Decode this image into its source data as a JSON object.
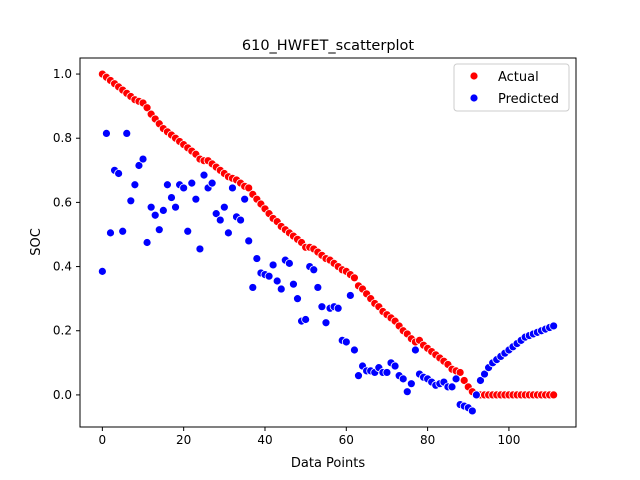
{
  "chart_data": {
    "type": "scatter",
    "title": "610_HWFET_scatterplot",
    "xlabel": "Data Points",
    "ylabel": "SOC",
    "xlim": [
      -5.5,
      116.5
    ],
    "ylim": [
      -0.1,
      1.05
    ],
    "xticks": [
      0,
      20,
      40,
      60,
      80,
      100
    ],
    "yticks": [
      0.0,
      0.2,
      0.4,
      0.6,
      0.8,
      1.0
    ],
    "xtick_labels": [
      "0",
      "20",
      "40",
      "60",
      "80",
      "100"
    ],
    "ytick_labels": [
      "0.0",
      "0.2",
      "0.4",
      "0.6",
      "0.8",
      "1.0"
    ],
    "grid": false,
    "legend_position": "top-right",
    "series": [
      {
        "name": "Actual",
        "color": "#ff0000",
        "x": [
          0,
          1,
          2,
          3,
          4,
          5,
          6,
          7,
          8,
          9,
          10,
          11,
          12,
          13,
          14,
          15,
          16,
          17,
          18,
          19,
          20,
          21,
          22,
          23,
          24,
          25,
          26,
          27,
          28,
          29,
          30,
          31,
          32,
          33,
          34,
          35,
          36,
          37,
          38,
          39,
          40,
          41,
          42,
          43,
          44,
          45,
          46,
          47,
          48,
          49,
          50,
          51,
          52,
          53,
          54,
          55,
          56,
          57,
          58,
          59,
          60,
          61,
          62,
          63,
          64,
          65,
          66,
          67,
          68,
          69,
          70,
          71,
          72,
          73,
          74,
          75,
          76,
          77,
          78,
          79,
          80,
          81,
          82,
          83,
          84,
          85,
          86,
          87,
          88,
          89,
          90,
          91,
          92,
          93,
          94,
          95,
          96,
          97,
          98,
          99,
          100,
          101,
          102,
          103,
          104,
          105,
          106,
          107,
          108,
          109,
          110,
          111
        ],
        "y": [
          1.0,
          0.99,
          0.98,
          0.97,
          0.96,
          0.95,
          0.94,
          0.93,
          0.92,
          0.915,
          0.91,
          0.895,
          0.875,
          0.86,
          0.845,
          0.83,
          0.82,
          0.81,
          0.8,
          0.79,
          0.78,
          0.77,
          0.76,
          0.75,
          0.735,
          0.73,
          0.73,
          0.72,
          0.71,
          0.7,
          0.69,
          0.68,
          0.675,
          0.67,
          0.66,
          0.65,
          0.645,
          0.625,
          0.61,
          0.595,
          0.58,
          0.565,
          0.55,
          0.54,
          0.525,
          0.515,
          0.505,
          0.495,
          0.485,
          0.475,
          0.46,
          0.46,
          0.455,
          0.445,
          0.435,
          0.425,
          0.42,
          0.41,
          0.4,
          0.39,
          0.385,
          0.375,
          0.365,
          0.34,
          0.33,
          0.315,
          0.3,
          0.285,
          0.275,
          0.26,
          0.25,
          0.24,
          0.23,
          0.215,
          0.2,
          0.19,
          0.175,
          0.165,
          0.17,
          0.155,
          0.145,
          0.135,
          0.125,
          0.115,
          0.105,
          0.095,
          0.08,
          0.075,
          0.07,
          0.045,
          0.025,
          0.01,
          0.0,
          0.0,
          0.0,
          0.0,
          0.0,
          0.0,
          0.0,
          0.0,
          0.0,
          0.0,
          0.0,
          0.0,
          0.0,
          0.0,
          0.0,
          0.0,
          0.0,
          0.0,
          0.0,
          0.0
        ]
      },
      {
        "name": "Predicted",
        "color": "#0000ff",
        "x": [
          0,
          1,
          2,
          3,
          4,
          5,
          6,
          7,
          8,
          9,
          10,
          11,
          12,
          13,
          14,
          15,
          16,
          17,
          18,
          19,
          20,
          21,
          22,
          23,
          24,
          25,
          26,
          27,
          28,
          29,
          30,
          31,
          32,
          33,
          34,
          35,
          36,
          37,
          38,
          39,
          40,
          41,
          42,
          43,
          44,
          45,
          46,
          47,
          48,
          49,
          50,
          51,
          52,
          53,
          54,
          55,
          56,
          57,
          58,
          59,
          60,
          61,
          62,
          63,
          64,
          65,
          66,
          67,
          68,
          69,
          70,
          71,
          72,
          73,
          74,
          75,
          76,
          77,
          78,
          79,
          80,
          81,
          82,
          83,
          84,
          85,
          86,
          87,
          88,
          89,
          90,
          91,
          92,
          93,
          94,
          95,
          96,
          97,
          98,
          99,
          100,
          101,
          102,
          103,
          104,
          105,
          106,
          107,
          108,
          109,
          110,
          111
        ],
        "y": [
          0.385,
          0.815,
          0.505,
          0.7,
          0.69,
          0.51,
          0.815,
          0.605,
          0.655,
          0.715,
          0.735,
          0.475,
          0.585,
          0.56,
          0.515,
          0.575,
          0.655,
          0.615,
          0.585,
          0.655,
          0.645,
          0.51,
          0.66,
          0.61,
          0.455,
          0.685,
          0.645,
          0.66,
          0.565,
          0.545,
          0.585,
          0.505,
          0.645,
          0.555,
          0.545,
          0.61,
          0.48,
          0.335,
          0.425,
          0.38,
          0.375,
          0.37,
          0.405,
          0.355,
          0.33,
          0.42,
          0.41,
          0.345,
          0.3,
          0.23,
          0.235,
          0.4,
          0.39,
          0.335,
          0.275,
          0.225,
          0.27,
          0.275,
          0.27,
          0.17,
          0.165,
          0.31,
          0.14,
          0.06,
          0.09,
          0.075,
          0.075,
          0.07,
          0.085,
          0.07,
          0.07,
          0.1,
          0.09,
          0.06,
          0.05,
          0.01,
          0.035,
          0.14,
          0.065,
          0.055,
          0.05,
          0.04,
          0.03,
          0.035,
          0.04,
          0.025,
          0.025,
          0.05,
          -0.03,
          -0.035,
          -0.04,
          -0.05,
          0.0,
          0.045,
          0.065,
          0.085,
          0.1,
          0.11,
          0.12,
          0.13,
          0.14,
          0.15,
          0.16,
          0.17,
          0.18,
          0.185,
          0.19,
          0.195,
          0.2,
          0.205,
          0.21,
          0.215
        ]
      }
    ]
  }
}
